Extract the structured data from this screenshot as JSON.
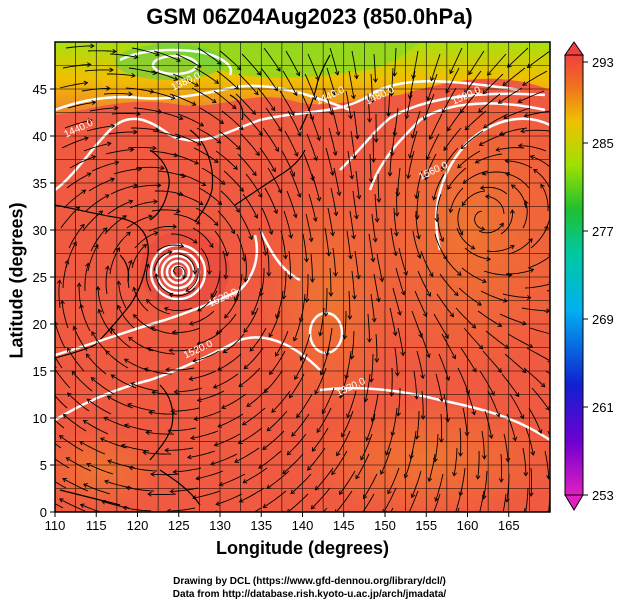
{
  "title": "GSM 06Z04Aug2023 (850.0hPa)",
  "xlabel": "Longitude (degrees)",
  "ylabel": "Latitude (degrees)",
  "credit_line1": "Drawing by DCL (https://www.gfd-dennou.org/library/dcl/)",
  "credit_line2": "Data from http://database.rish.kyoto-u.ac.jp/arch/jmadata/",
  "chart_data": {
    "type": "heatmap",
    "x_ticks": [
      110,
      115,
      120,
      125,
      130,
      135,
      140,
      145,
      150,
      155,
      160,
      165
    ],
    "y_ticks": [
      0,
      5,
      10,
      15,
      20,
      25,
      30,
      35,
      40,
      45
    ],
    "xlim": [
      110,
      170
    ],
    "ylim": [
      0,
      50
    ],
    "colorbar": {
      "ticks": [
        253,
        261,
        269,
        277,
        285,
        293
      ],
      "range": [
        253,
        293
      ]
    },
    "contour_labels": [
      {
        "text": "1380.0",
        "lon": 126,
        "lat": 45.5
      },
      {
        "text": "1440.0",
        "lon": 113,
        "lat": 40.5
      },
      {
        "text": "1440.0",
        "lon": 143.5,
        "lat": 44
      },
      {
        "text": "1480.0",
        "lon": 149.5,
        "lat": 44
      },
      {
        "text": "1520.0",
        "lon": 160,
        "lat": 44
      },
      {
        "text": "1560.0",
        "lon": 156,
        "lat": 36
      },
      {
        "text": "1520.0",
        "lon": 130.5,
        "lat": 22.5
      },
      {
        "text": "1520.0",
        "lon": 127.5,
        "lat": 17
      },
      {
        "text": "1520.0",
        "lon": 146,
        "lat": 13
      }
    ]
  }
}
